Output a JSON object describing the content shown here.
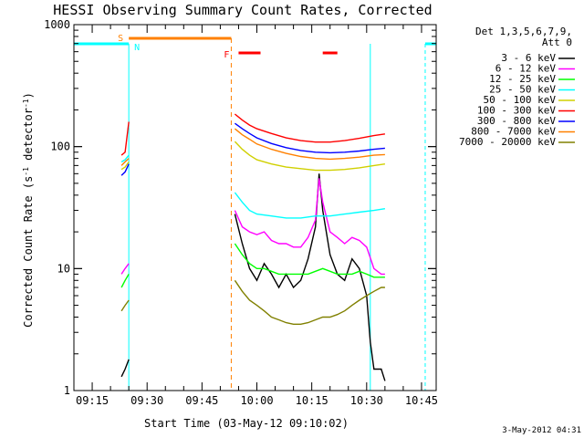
{
  "chart_data": {
    "type": "line",
    "title": "HESSI Observing Summary Count Rates, Corrected",
    "xlabel": "Start Time (03-May-12 09:10:02)",
    "ylabel_main": "Corrected Count Rate (s",
    "ylabel_sup1": "-1",
    "ylabel_mid": " detector",
    "ylabel_sup2": "-1",
    "ylabel_end": ")",
    "yscale": "log",
    "ylim": [
      1,
      1000
    ],
    "xlim": [
      "09:10",
      "10:49"
    ],
    "x_ticks": [
      "09:15",
      "09:30",
      "09:45",
      "10:00",
      "10:15",
      "10:30",
      "10:45"
    ],
    "y_ticks": [
      "1",
      "10",
      "100",
      "1000"
    ],
    "grid": false,
    "legend_header": [
      "Det 1,3,5,6,7,9,",
      "Att 0"
    ],
    "legend_position": "top-right",
    "date_stamp": "3-May-2012 04:31",
    "flag_labels": {
      "saa": "S",
      "night": "N",
      "flare": "F"
    },
    "flag_colors": {
      "saa": "#ff8000",
      "night": "#00ffff",
      "flare": "#ff0000"
    },
    "data_gaps": [
      [
        "09:25",
        "09:53"
      ],
      [
        "10:35",
        "10:46"
      ]
    ],
    "saa_interval": [
      "09:25",
      "09:53"
    ],
    "night_intervals": [
      [
        "09:10",
        "09:25"
      ],
      [
        "10:46",
        "10:49"
      ]
    ],
    "night_boundaries": [
      "09:25",
      "10:31",
      "10:46"
    ],
    "flare_intervals": [
      [
        "09:55",
        "10:01"
      ],
      [
        "10:18",
        "10:22"
      ]
    ],
    "series": [
      {
        "name": "3 - 6 keV",
        "color": "#000000",
        "x": [
          "09:23",
          "09:24",
          "09:25",
          "09:54",
          "09:56",
          "09:58",
          "10:00",
          "10:02",
          "10:04",
          "10:06",
          "10:08",
          "10:10",
          "10:12",
          "10:14",
          "10:16",
          "10:17",
          "10:18",
          "10:20",
          "10:22",
          "10:24",
          "10:26",
          "10:28",
          "10:30",
          "10:31",
          "10:32",
          "10:34",
          "10:35"
        ],
        "y": [
          1.3,
          1.5,
          1.8,
          28,
          16,
          10,
          8,
          11,
          9,
          7,
          9,
          7,
          8,
          12,
          22,
          60,
          30,
          13,
          9,
          8,
          12,
          10,
          6,
          2.5,
          1.5,
          1.5,
          1.2
        ]
      },
      {
        "name": "6 - 12 keV",
        "color": "#ff00ff",
        "x": [
          "09:23",
          "09:24",
          "09:25",
          "09:54",
          "09:56",
          "09:58",
          "10:00",
          "10:02",
          "10:04",
          "10:06",
          "10:08",
          "10:10",
          "10:12",
          "10:14",
          "10:16",
          "10:17",
          "10:18",
          "10:20",
          "10:22",
          "10:24",
          "10:26",
          "10:28",
          "10:30",
          "10:32",
          "10:34",
          "10:35"
        ],
        "y": [
          9,
          10,
          11,
          30,
          22,
          20,
          19,
          20,
          17,
          16,
          16,
          15,
          15,
          18,
          25,
          55,
          35,
          20,
          18,
          16,
          18,
          17,
          15,
          10,
          9,
          9
        ]
      },
      {
        "name": "12 - 25 keV",
        "color": "#00ff00",
        "x": [
          "09:23",
          "09:24",
          "09:25",
          "09:54",
          "09:56",
          "09:58",
          "10:00",
          "10:02",
          "10:04",
          "10:06",
          "10:08",
          "10:10",
          "10:12",
          "10:14",
          "10:16",
          "10:18",
          "10:20",
          "10:22",
          "10:24",
          "10:26",
          "10:28",
          "10:30",
          "10:32",
          "10:34",
          "10:35"
        ],
        "y": [
          7,
          8,
          9,
          16,
          13,
          11,
          10,
          10,
          9.5,
          9,
          9,
          9,
          9,
          9,
          9.5,
          10,
          9.5,
          9,
          9,
          9,
          9.5,
          9,
          8.5,
          8.5,
          8.5
        ]
      },
      {
        "name": "25 - 50 keV",
        "color": "#00ffff",
        "x": [
          "09:23",
          "09:24",
          "09:25",
          "09:54",
          "09:56",
          "09:58",
          "10:00",
          "10:04",
          "10:08",
          "10:12",
          "10:16",
          "10:20",
          "10:24",
          "10:28",
          "10:32",
          "10:35"
        ],
        "y": [
          75,
          78,
          85,
          42,
          35,
          30,
          28,
          27,
          26,
          26,
          27,
          27,
          28,
          29,
          30,
          31
        ]
      },
      {
        "name": "50 - 100 keV",
        "color": "#d0d000",
        "x": [
          "09:23",
          "09:24",
          "09:25",
          "09:54",
          "09:56",
          "09:58",
          "10:00",
          "10:04",
          "10:08",
          "10:12",
          "10:16",
          "10:20",
          "10:24",
          "10:28",
          "10:32",
          "10:35"
        ],
        "y": [
          65,
          68,
          75,
          110,
          95,
          85,
          78,
          72,
          68,
          66,
          64,
          64,
          65,
          67,
          70,
          72
        ]
      },
      {
        "name": "100 - 300 keV",
        "color": "#ff0000",
        "x": [
          "09:23",
          "09:24",
          "09:25",
          "09:54",
          "09:56",
          "09:58",
          "10:00",
          "10:04",
          "10:08",
          "10:12",
          "10:16",
          "10:20",
          "10:24",
          "10:28",
          "10:32",
          "10:35"
        ],
        "y": [
          85,
          90,
          160,
          185,
          165,
          150,
          140,
          128,
          118,
          112,
          109,
          109,
          112,
          117,
          123,
          127
        ]
      },
      {
        "name": "300 - 800 keV",
        "color": "#0000ff",
        "x": [
          "09:23",
          "09:24",
          "09:25",
          "09:54",
          "09:56",
          "09:58",
          "10:00",
          "10:04",
          "10:08",
          "10:12",
          "10:16",
          "10:20",
          "10:24",
          "10:28",
          "10:32",
          "10:35"
        ],
        "y": [
          58,
          62,
          72,
          155,
          140,
          128,
          118,
          106,
          98,
          93,
          90,
          89,
          90,
          92,
          95,
          97
        ]
      },
      {
        "name": "800 - 7000 keV",
        "color": "#ff8000",
        "x": [
          "09:23",
          "09:24",
          "09:25",
          "09:54",
          "09:56",
          "09:58",
          "10:00",
          "10:04",
          "10:08",
          "10:12",
          "10:16",
          "10:20",
          "10:24",
          "10:28",
          "10:32",
          "10:35"
        ],
        "y": [
          70,
          75,
          80,
          140,
          125,
          115,
          105,
          95,
          88,
          83,
          80,
          79,
          80,
          82,
          85,
          86
        ]
      },
      {
        "name": "7000 - 20000 keV",
        "color": "#808000",
        "x": [
          "09:23",
          "09:24",
          "09:25",
          "09:54",
          "09:56",
          "09:58",
          "10:00",
          "10:02",
          "10:04",
          "10:06",
          "10:08",
          "10:10",
          "10:12",
          "10:14",
          "10:16",
          "10:18",
          "10:20",
          "10:22",
          "10:24",
          "10:26",
          "10:28",
          "10:30",
          "10:32",
          "10:34",
          "10:35"
        ],
        "y": [
          4.5,
          5,
          5.5,
          8,
          6.5,
          5.5,
          5,
          4.5,
          4,
          3.8,
          3.6,
          3.5,
          3.5,
          3.6,
          3.8,
          4,
          4,
          4.2,
          4.5,
          5,
          5.5,
          6,
          6.5,
          7,
          7
        ]
      }
    ]
  }
}
